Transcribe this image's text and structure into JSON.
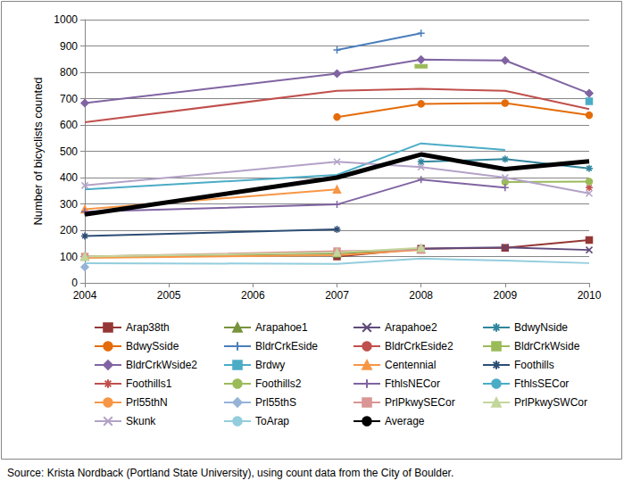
{
  "chart_data": {
    "type": "line",
    "y_label": "Number of bicyclists counted",
    "source": "Source: Krista Nordback (Portland State University), using count data from the City of Boulder.",
    "x": [
      2004,
      2007,
      2008,
      2009,
      2010
    ],
    "xlim": [
      2004,
      2010
    ],
    "xticks": [
      2004,
      2005,
      2006,
      2007,
      2008,
      2009,
      2010
    ],
    "ylim": [
      0,
      1000
    ],
    "yticks": [
      0,
      100,
      200,
      300,
      400,
      500,
      600,
      700,
      800,
      900,
      1000
    ],
    "grid": true,
    "legend": "bottom",
    "series": [
      {
        "name": "Arap38th",
        "color": "#953735",
        "marker": "square",
        "values": [
          null,
          100,
          130,
          133,
          163
        ]
      },
      {
        "name": "Arapahoe1",
        "color": "#77933c",
        "marker": "triangle",
        "values": [
          100,
          112,
          128,
          null,
          null
        ]
      },
      {
        "name": "Arapahoe2",
        "color": "#604a7b",
        "marker": "x",
        "values": [
          null,
          null,
          130,
          135,
          125
        ]
      },
      {
        "name": "BdwyNside",
        "color": "#31859c",
        "marker": "asterisk",
        "values": [
          null,
          null,
          460,
          470,
          435
        ]
      },
      {
        "name": "BdwySside",
        "color": "#e46c0a",
        "marker": "circle",
        "values": [
          null,
          630,
          680,
          683,
          637
        ]
      },
      {
        "name": "BldrCrkEside",
        "color": "#4a7ebb",
        "marker": "plus",
        "values": [
          null,
          885,
          948,
          null,
          null
        ]
      },
      {
        "name": "BldrCrkEside2",
        "color": "#c0504d",
        "marker": "none",
        "values": [
          610,
          730,
          737,
          730,
          660
        ]
      },
      {
        "name": "BldrCrkWside",
        "color": "#9bbb59",
        "marker": "dash",
        "values": [
          null,
          null,
          823,
          null,
          null
        ]
      },
      {
        "name": "BldrCrkWside2",
        "color": "#8064a2",
        "marker": "diamond",
        "values": [
          683,
          795,
          848,
          845,
          720
        ]
      },
      {
        "name": "Brdwy",
        "color": "#4bacc6",
        "marker": "square",
        "values": [
          null,
          null,
          null,
          null,
          690
        ]
      },
      {
        "name": "Centennial",
        "color": "#f79646",
        "marker": "triangle",
        "values": [
          280,
          355,
          null,
          null,
          null
        ]
      },
      {
        "name": "Foothills",
        "color": "#2c4d75",
        "marker": "asterisk",
        "values": [
          178,
          203,
          null,
          null,
          null
        ]
      },
      {
        "name": "Foothills1",
        "color": "#c0504d",
        "marker": "asterisk",
        "values": [
          null,
          null,
          null,
          null,
          362
        ]
      },
      {
        "name": "Foothills2",
        "color": "#9bbb59",
        "marker": "circle",
        "values": [
          null,
          null,
          null,
          383,
          385
        ]
      },
      {
        "name": "FthlsNECor",
        "color": "#8064a2",
        "marker": "plus",
        "values": [
          270,
          298,
          392,
          362,
          null
        ]
      },
      {
        "name": "FthlsSECor",
        "color": "#4bacc6",
        "marker": "none",
        "values": [
          355,
          410,
          530,
          505,
          null
        ]
      },
      {
        "name": "Prl55thN",
        "color": "#f79646",
        "marker": "none",
        "values": [
          95,
          105,
          125,
          null,
          null
        ]
      },
      {
        "name": "Prl55thS",
        "color": "#95b3d7",
        "marker": "diamond",
        "values": [
          60,
          null,
          null,
          null,
          null
        ]
      },
      {
        "name": "PrlPkwySECor",
        "color": "#d99694",
        "marker": "square",
        "values": [
          100,
          120,
          125,
          null,
          null
        ]
      },
      {
        "name": "PrlPkwySWCor",
        "color": "#c3d69b",
        "marker": "triangle",
        "values": [
          100,
          115,
          133,
          null,
          null
        ]
      },
      {
        "name": "Skunk",
        "color": "#b3a2c7",
        "marker": "x",
        "values": [
          370,
          460,
          440,
          400,
          340
        ]
      },
      {
        "name": "ToArap",
        "color": "#93cddd",
        "marker": "none",
        "values": [
          75,
          72,
          92,
          85,
          75
        ]
      },
      {
        "name": "Average",
        "color": "#000000",
        "marker": "none",
        "line_style": "thick",
        "values": [
          260,
          400,
          488,
          432,
          462
        ]
      }
    ]
  }
}
